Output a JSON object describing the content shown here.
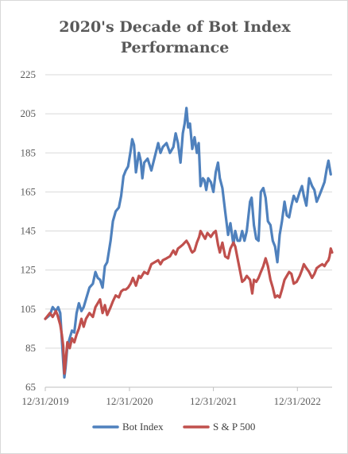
{
  "chart_data": {
    "type": "line",
    "title_line1": "2020's Decade of Bot Index",
    "title_line2": "Performance",
    "xlabel": "",
    "ylabel": "",
    "ylim": [
      65,
      225
    ],
    "y_ticks": [
      "65",
      "85",
      "105",
      "125",
      "145",
      "165",
      "185",
      "205",
      "225"
    ],
    "x_range": [
      "2019-12-31",
      "2023-05-31"
    ],
    "x_ticks": [
      {
        "date": "2019-12-31",
        "label": "12/31/2019"
      },
      {
        "date": "2020-12-31",
        "label": "12/31/2020"
      },
      {
        "date": "2021-12-31",
        "label": "12/31/2021"
      },
      {
        "date": "2022-12-31",
        "label": "12/31/2022"
      }
    ],
    "grid": true,
    "legend_position": "bottom",
    "series": [
      {
        "name": "Bot Index",
        "color": "#4f81bd",
        "points": [
          [
            "2019-12-31",
            100
          ],
          [
            "2020-01-20",
            102
          ],
          [
            "2020-02-01",
            106
          ],
          [
            "2020-02-15",
            104
          ],
          [
            "2020-02-25",
            106
          ],
          [
            "2020-03-05",
            103
          ],
          [
            "2020-03-12",
            90
          ],
          [
            "2020-03-18",
            78
          ],
          [
            "2020-03-23",
            70
          ],
          [
            "2020-03-28",
            75
          ],
          [
            "2020-04-05",
            86
          ],
          [
            "2020-04-15",
            90
          ],
          [
            "2020-04-25",
            94
          ],
          [
            "2020-05-05",
            93
          ],
          [
            "2020-05-15",
            103
          ],
          [
            "2020-05-25",
            108
          ],
          [
            "2020-06-05",
            104
          ],
          [
            "2020-06-15",
            106
          ],
          [
            "2020-06-25",
            110
          ],
          [
            "2020-07-10",
            116
          ],
          [
            "2020-07-25",
            118
          ],
          [
            "2020-08-05",
            124
          ],
          [
            "2020-08-15",
            121
          ],
          [
            "2020-08-25",
            120
          ],
          [
            "2020-09-05",
            116
          ],
          [
            "2020-09-15",
            127
          ],
          [
            "2020-09-25",
            129
          ],
          [
            "2020-10-10",
            140
          ],
          [
            "2020-10-20",
            150
          ],
          [
            "2020-11-01",
            155
          ],
          [
            "2020-11-15",
            157
          ],
          [
            "2020-11-25",
            163
          ],
          [
            "2020-12-05",
            173
          ],
          [
            "2020-12-15",
            176
          ],
          [
            "2020-12-25",
            178
          ],
          [
            "2021-01-05",
            186
          ],
          [
            "2021-01-12",
            192
          ],
          [
            "2021-01-20",
            189
          ],
          [
            "2021-01-28",
            175
          ],
          [
            "2021-02-10",
            185
          ],
          [
            "2021-02-18",
            181
          ],
          [
            "2021-02-25",
            172
          ],
          [
            "2021-03-05",
            180
          ],
          [
            "2021-03-20",
            182
          ],
          [
            "2021-04-05",
            176
          ],
          [
            "2021-04-20",
            183
          ],
          [
            "2021-05-05",
            190
          ],
          [
            "2021-05-15",
            185
          ],
          [
            "2021-05-25",
            188
          ],
          [
            "2021-06-10",
            190
          ],
          [
            "2021-06-25",
            185
          ],
          [
            "2021-07-10",
            188
          ],
          [
            "2021-07-20",
            195
          ],
          [
            "2021-07-30",
            190
          ],
          [
            "2021-08-10",
            180
          ],
          [
            "2021-08-20",
            195
          ],
          [
            "2021-08-28",
            200
          ],
          [
            "2021-09-05",
            208
          ],
          [
            "2021-09-12",
            198
          ],
          [
            "2021-09-20",
            200
          ],
          [
            "2021-09-30",
            187
          ],
          [
            "2021-10-10",
            193
          ],
          [
            "2021-10-20",
            185
          ],
          [
            "2021-10-28",
            190
          ],
          [
            "2021-11-05",
            168
          ],
          [
            "2021-11-15",
            172
          ],
          [
            "2021-11-22",
            171
          ],
          [
            "2021-11-30",
            166
          ],
          [
            "2021-12-08",
            172
          ],
          [
            "2021-12-20",
            170
          ],
          [
            "2021-12-31",
            165
          ],
          [
            "2022-01-10",
            175
          ],
          [
            "2022-01-20",
            180
          ],
          [
            "2022-01-28",
            172
          ],
          [
            "2022-02-08",
            167
          ],
          [
            "2022-02-20",
            155
          ],
          [
            "2022-03-05",
            143
          ],
          [
            "2022-03-15",
            149
          ],
          [
            "2022-03-28",
            138
          ],
          [
            "2022-04-05",
            145
          ],
          [
            "2022-04-15",
            140
          ],
          [
            "2022-04-25",
            140
          ],
          [
            "2022-05-05",
            145
          ],
          [
            "2022-05-15",
            140
          ],
          [
            "2022-05-25",
            145
          ],
          [
            "2022-06-08",
            160
          ],
          [
            "2022-06-15",
            162
          ],
          [
            "2022-06-25",
            148
          ],
          [
            "2022-07-05",
            141
          ],
          [
            "2022-07-15",
            140
          ],
          [
            "2022-07-25",
            165
          ],
          [
            "2022-08-05",
            167
          ],
          [
            "2022-08-15",
            162
          ],
          [
            "2022-08-25",
            150
          ],
          [
            "2022-09-05",
            148
          ],
          [
            "2022-09-15",
            140
          ],
          [
            "2022-09-25",
            137
          ],
          [
            "2022-10-05",
            129
          ],
          [
            "2022-10-15",
            143
          ],
          [
            "2022-10-25",
            150
          ],
          [
            "2022-11-05",
            160
          ],
          [
            "2022-11-15",
            153
          ],
          [
            "2022-11-25",
            152
          ],
          [
            "2022-12-05",
            158
          ],
          [
            "2022-12-15",
            163
          ],
          [
            "2022-12-28",
            160
          ],
          [
            "2023-01-10",
            165
          ],
          [
            "2023-01-20",
            168
          ],
          [
            "2023-01-28",
            163
          ],
          [
            "2023-02-08",
            158
          ],
          [
            "2023-02-20",
            172
          ],
          [
            "2023-03-05",
            168
          ],
          [
            "2023-03-15",
            166
          ],
          [
            "2023-03-25",
            160
          ],
          [
            "2023-04-05",
            163
          ],
          [
            "2023-04-18",
            167
          ],
          [
            "2023-04-28",
            170
          ],
          [
            "2023-05-08",
            177
          ],
          [
            "2023-05-15",
            181
          ],
          [
            "2023-05-25",
            174
          ]
        ]
      },
      {
        "name": "S & P 500",
        "color": "#c0504d",
        "points": [
          [
            "2019-12-31",
            100
          ],
          [
            "2020-01-20",
            103
          ],
          [
            "2020-02-01",
            101
          ],
          [
            "2020-02-15",
            104
          ],
          [
            "2020-02-22",
            102
          ],
          [
            "2020-03-05",
            97
          ],
          [
            "2020-03-12",
            92
          ],
          [
            "2020-03-18",
            86
          ],
          [
            "2020-03-23",
            72
          ],
          [
            "2020-03-28",
            78
          ],
          [
            "2020-04-05",
            88
          ],
          [
            "2020-04-15",
            85
          ],
          [
            "2020-04-25",
            90
          ],
          [
            "2020-05-05",
            88
          ],
          [
            "2020-05-15",
            92
          ],
          [
            "2020-05-25",
            95
          ],
          [
            "2020-06-05",
            100
          ],
          [
            "2020-06-15",
            96
          ],
          [
            "2020-06-25",
            100
          ],
          [
            "2020-07-10",
            103
          ],
          [
            "2020-07-25",
            101
          ],
          [
            "2020-08-05",
            106
          ],
          [
            "2020-08-15",
            108
          ],
          [
            "2020-08-25",
            110
          ],
          [
            "2020-09-05",
            103
          ],
          [
            "2020-09-15",
            107
          ],
          [
            "2020-09-25",
            102
          ],
          [
            "2020-10-10",
            106
          ],
          [
            "2020-10-20",
            109
          ],
          [
            "2020-11-01",
            112
          ],
          [
            "2020-11-15",
            111
          ],
          [
            "2020-11-25",
            114
          ],
          [
            "2020-12-05",
            115
          ],
          [
            "2020-12-15",
            115
          ],
          [
            "2020-12-25",
            116
          ],
          [
            "2021-01-05",
            118
          ],
          [
            "2021-01-15",
            121
          ],
          [
            "2021-01-28",
            117
          ],
          [
            "2021-02-10",
            122
          ],
          [
            "2021-02-18",
            121
          ],
          [
            "2021-03-05",
            124
          ],
          [
            "2021-03-20",
            123
          ],
          [
            "2021-04-05",
            128
          ],
          [
            "2021-04-20",
            129
          ],
          [
            "2021-05-05",
            130
          ],
          [
            "2021-05-15",
            128
          ],
          [
            "2021-05-25",
            130
          ],
          [
            "2021-06-10",
            131
          ],
          [
            "2021-06-25",
            132
          ],
          [
            "2021-07-10",
            135
          ],
          [
            "2021-07-20",
            133
          ],
          [
            "2021-07-30",
            136
          ],
          [
            "2021-08-10",
            137
          ],
          [
            "2021-08-20",
            138
          ],
          [
            "2021-08-28",
            139
          ],
          [
            "2021-09-05",
            140
          ],
          [
            "2021-09-15",
            138
          ],
          [
            "2021-09-25",
            135
          ],
          [
            "2021-09-30",
            134
          ],
          [
            "2021-10-10",
            135
          ],
          [
            "2021-10-20",
            139
          ],
          [
            "2021-10-30",
            142
          ],
          [
            "2021-11-05",
            145
          ],
          [
            "2021-11-15",
            143
          ],
          [
            "2021-11-25",
            141
          ],
          [
            "2021-12-05",
            144
          ],
          [
            "2021-12-20",
            142
          ],
          [
            "2021-12-31",
            144
          ],
          [
            "2022-01-10",
            145
          ],
          [
            "2022-01-20",
            138
          ],
          [
            "2022-01-28",
            134
          ],
          [
            "2022-02-08",
            139
          ],
          [
            "2022-02-20",
            132
          ],
          [
            "2022-03-05",
            131
          ],
          [
            "2022-03-15",
            136
          ],
          [
            "2022-03-28",
            139
          ],
          [
            "2022-04-05",
            137
          ],
          [
            "2022-04-15",
            131
          ],
          [
            "2022-04-25",
            125
          ],
          [
            "2022-05-05",
            119
          ],
          [
            "2022-05-15",
            120
          ],
          [
            "2022-05-25",
            122
          ],
          [
            "2022-06-08",
            120
          ],
          [
            "2022-06-18",
            113
          ],
          [
            "2022-06-25",
            120
          ],
          [
            "2022-07-05",
            119
          ],
          [
            "2022-07-15",
            121
          ],
          [
            "2022-07-25",
            124
          ],
          [
            "2022-08-05",
            127
          ],
          [
            "2022-08-15",
            131
          ],
          [
            "2022-08-25",
            127
          ],
          [
            "2022-09-05",
            120
          ],
          [
            "2022-09-15",
            116
          ],
          [
            "2022-09-25",
            111
          ],
          [
            "2022-10-05",
            112
          ],
          [
            "2022-10-15",
            111
          ],
          [
            "2022-10-25",
            115
          ],
          [
            "2022-11-05",
            120
          ],
          [
            "2022-11-15",
            122
          ],
          [
            "2022-11-25",
            124
          ],
          [
            "2022-12-05",
            123
          ],
          [
            "2022-12-15",
            118
          ],
          [
            "2022-12-28",
            119
          ],
          [
            "2023-01-10",
            122
          ],
          [
            "2023-01-20",
            125
          ],
          [
            "2023-01-28",
            128
          ],
          [
            "2023-02-08",
            126
          ],
          [
            "2023-02-20",
            124
          ],
          [
            "2023-03-05",
            121
          ],
          [
            "2023-03-15",
            123
          ],
          [
            "2023-03-25",
            126
          ],
          [
            "2023-04-05",
            127
          ],
          [
            "2023-04-18",
            128
          ],
          [
            "2023-04-28",
            127
          ],
          [
            "2023-05-08",
            129
          ],
          [
            "2023-05-15",
            130
          ],
          [
            "2023-05-20",
            132
          ],
          [
            "2023-05-25",
            136
          ],
          [
            "2023-05-31",
            134
          ]
        ]
      }
    ]
  }
}
